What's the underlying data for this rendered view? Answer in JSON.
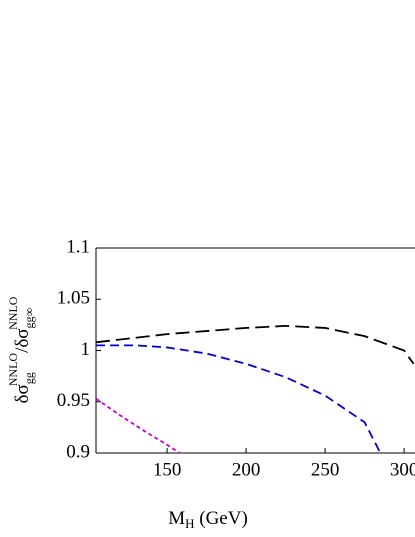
{
  "chart_data": {
    "type": "line",
    "x_label_parts": [
      "M",
      "H",
      " (GeV)"
    ],
    "y_label_parts": [
      "δσ",
      "gg",
      "NNLO",
      "/δσ",
      "gg∞",
      "NNLO"
    ],
    "xlim": [
      105,
      320
    ],
    "xticks": [
      150,
      200,
      250,
      300
    ],
    "ylim": [
      0.9,
      1.1
    ],
    "yticks": [
      0.9,
      0.95,
      1,
      1.05,
      1.1
    ],
    "series": [
      {
        "color": "#000000",
        "dash": "14 6",
        "x": [
          105,
          150,
          200,
          225,
          250,
          275,
          300,
          306
        ],
        "values": [
          1.008,
          1.016,
          1.022,
          1.024,
          1.022,
          1.014,
          1.0,
          0.987
        ]
      },
      {
        "color": "#0000dd",
        "dash": "9 5",
        "x": [
          105,
          130,
          150,
          175,
          200,
          225,
          250,
          275,
          285
        ],
        "values": [
          1.005,
          1.005,
          1.003,
          0.997,
          0.987,
          0.974,
          0.956,
          0.93,
          0.9
        ]
      },
      {
        "color": "#cc00cc",
        "dash": "4 3",
        "x": [
          105,
          120,
          135,
          150,
          158
        ],
        "values": [
          0.953,
          0.937,
          0.922,
          0.908,
          0.9
        ]
      }
    ]
  }
}
